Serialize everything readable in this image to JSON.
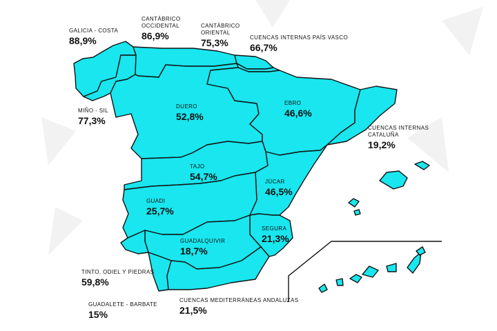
{
  "colors": {
    "fill": "#19E6EE",
    "stroke": "#111111",
    "background": "#ffffff",
    "shape": "#f1f1f1"
  },
  "basins": {
    "galicia": {
      "name": "GALICIA - COSTA",
      "value": "88,9%"
    },
    "cant_occ": {
      "name": "CANTÁBRICO OCCIDENTAL",
      "value": "86,9%"
    },
    "cant_ori": {
      "name": "CANTÁBRICO ORIENTAL",
      "value": "75,3%"
    },
    "pais_vasco": {
      "name": "CUENCAS INTERNAS PAÍS VASCO",
      "value": "66,7%"
    },
    "mino": {
      "name": "MIÑO - SIL",
      "value": "77,3%"
    },
    "duero": {
      "name": "DUERO",
      "value": "52,8%"
    },
    "ebro": {
      "name": "EBRO",
      "value": "46,6%"
    },
    "cataluna": {
      "name": "CUENCAS INTERNAS CATALUÑA",
      "value": "19,2%"
    },
    "tajo": {
      "name": "TAJO",
      "value": "54,7%"
    },
    "jucar": {
      "name": "JÚCAR",
      "value": "46,5%"
    },
    "guadiana": {
      "name": "GUADI",
      "value": "25,7%"
    },
    "segura": {
      "name": "SEGURA",
      "value": "21,3%"
    },
    "guadalquivir": {
      "name": "GUADALQUIVIR",
      "value": "18,7%"
    },
    "tinto": {
      "name": "TINTO, ODIEL Y PIEDRAS",
      "value": "59,8%"
    },
    "guadalete": {
      "name": "GUADALETE - BARBATE",
      "value": "15%"
    },
    "andaluzas": {
      "name": "CUENCAS MEDITERRÁNEAS ANDALUZAS",
      "value": "21,5%"
    }
  }
}
